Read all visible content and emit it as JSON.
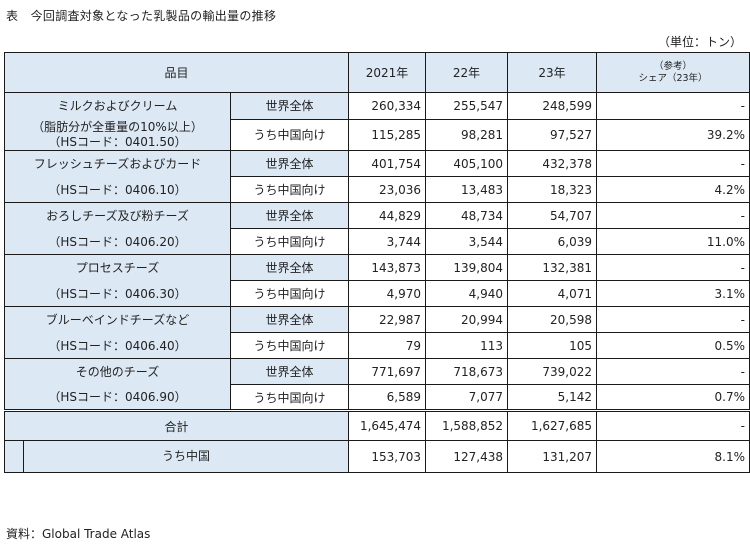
{
  "title": "表　今回調査対象となった乳製品の輸出量の推移",
  "unit": "（単位：トン）",
  "source": "資料：Global Trade Atlas",
  "header": {
    "item": "品目",
    "y2021": "2021年",
    "y22": "22年",
    "y23": "23年",
    "share_line1": "（参考）",
    "share_line2": "シェア（23年）"
  },
  "rows": [
    {
      "name1": "ミルクおよびクリーム",
      "name2": "（脂肪分が全重量の10%以上）",
      "code": "（HSコード：0401.50）",
      "world": {
        "label": "世界全体",
        "v2021": "260,334",
        "v22": "255,547",
        "v23": "248,599",
        "share": "-"
      },
      "china": {
        "label": "うち中国向け",
        "v2021": "115,285",
        "v22": "98,281",
        "v23": "97,527",
        "share": "39.2%"
      }
    },
    {
      "name1": "フレッシュチーズおよびカード",
      "code": "（HSコード：0406.10）",
      "world": {
        "label": "世界全体",
        "v2021": "401,754",
        "v22": "405,100",
        "v23": "432,378",
        "share": "-"
      },
      "china": {
        "label": "うち中国向け",
        "v2021": "23,036",
        "v22": "13,483",
        "v23": "18,323",
        "share": "4.2%"
      }
    },
    {
      "name1": "おろしチーズ及び粉チーズ",
      "code": "（HSコード：0406.20）",
      "world": {
        "label": "世界全体",
        "v2021": "44,829",
        "v22": "48,734",
        "v23": "54,707",
        "share": "-"
      },
      "china": {
        "label": "うち中国向け",
        "v2021": "3,744",
        "v22": "3,544",
        "v23": "6,039",
        "share": "11.0%"
      }
    },
    {
      "name1": "プロセスチーズ",
      "code": "（HSコード：0406.30）",
      "world": {
        "label": "世界全体",
        "v2021": "143,873",
        "v22": "139,804",
        "v23": "132,381",
        "share": "-"
      },
      "china": {
        "label": "うち中国向け",
        "v2021": "4,970",
        "v22": "4,940",
        "v23": "4,071",
        "share": "3.1%"
      }
    },
    {
      "name1": "ブルーベインドチーズなど",
      "code": "（HSコード：0406.40）",
      "world": {
        "label": "世界全体",
        "v2021": "22,987",
        "v22": "20,994",
        "v23": "20,598",
        "share": "-"
      },
      "china": {
        "label": "うち中国向け",
        "v2021": "79",
        "v22": "113",
        "v23": "105",
        "share": "0.5%"
      }
    },
    {
      "name1": "その他のチーズ",
      "code": "（HSコード：0406.90）",
      "world": {
        "label": "世界全体",
        "v2021": "771,697",
        "v22": "718,673",
        "v23": "739,022",
        "share": "-"
      },
      "china": {
        "label": "うち中国向け",
        "v2021": "6,589",
        "v22": "7,077",
        "v23": "5,142",
        "share": "0.7%"
      }
    }
  ],
  "total": {
    "label": "合計",
    "v2021": "1,645,474",
    "v22": "1,588,852",
    "v23": "1,627,685",
    "share": "-"
  },
  "china_total": {
    "label": "うち中国",
    "v2021": "153,703",
    "v22": "127,438",
    "v23": "131,207",
    "share": "8.1%"
  }
}
